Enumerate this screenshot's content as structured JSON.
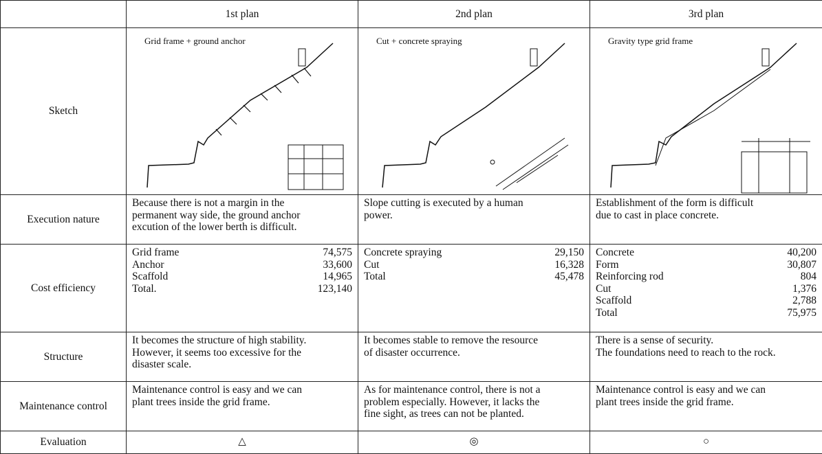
{
  "table": {
    "columns": [
      "1st plan",
      "2nd plan",
      "3rd plan"
    ],
    "sketch": {
      "label": "Sketch",
      "captions": [
        "Grid frame + ground anchor",
        "Cut + concrete spraying",
        "Gravity type grid frame"
      ]
    },
    "execution": {
      "label": "Execution nature",
      "cells": [
        [
          "Because there is not a margin in the",
          "permanent way side, the ground anchor",
          "excution of the lower berth is difficult."
        ],
        [
          "Slope cutting is executed by a human",
          "power."
        ],
        [
          "Establishment of the form is difficult",
          "due to cast in place concrete."
        ]
      ]
    },
    "cost": {
      "label": "Cost efficiency",
      "cells": [
        [
          {
            "item": "Grid frame",
            "amount": "74,575"
          },
          {
            "item": "Anchor",
            "amount": "33,600"
          },
          {
            "item": "Scaffold",
            "amount": "14,965"
          },
          {
            "item": "Total.",
            "amount": "123,140"
          }
        ],
        [
          {
            "item": "Concrete spraying",
            "amount": "29,150"
          },
          {
            "item": "Cut",
            "amount": "16,328"
          },
          {
            "item": "Total",
            "amount": "45,478"
          }
        ],
        [
          {
            "item": "Concrete",
            "amount": "40,200"
          },
          {
            "item": "Form",
            "amount": "30,807"
          },
          {
            "item": "Reinforcing rod",
            "amount": "804"
          },
          {
            "item": "Cut",
            "amount": "1,376"
          },
          {
            "item": "Scaffold",
            "amount": "2,788"
          },
          {
            "item": "Total",
            "amount": "75,975"
          }
        ]
      ]
    },
    "structure": {
      "label": "Structure",
      "cells": [
        [
          "It becomes the structure of high stability.",
          "However, it seems too excessive for the",
          "disaster scale."
        ],
        [
          "It becomes stable to remove the resource",
          "of disaster occurrence."
        ],
        [
          "There is a sense of security.",
          "The foundations need to reach to the rock."
        ]
      ]
    },
    "maintenance": {
      "label": "Maintenance control",
      "cells": [
        [
          "Maintenance control is easy and we can",
          "plant trees inside the grid frame."
        ],
        [
          "As for maintenance control, there is not a",
          "problem especially. However, it lacks the",
          "fine sight, as trees can not be planted."
        ],
        [
          "Maintenance control is easy and we can",
          "plant trees inside the grid frame."
        ]
      ]
    },
    "evaluation": {
      "label": "Evaluation",
      "cells": [
        "△",
        "◎",
        "○"
      ]
    }
  }
}
